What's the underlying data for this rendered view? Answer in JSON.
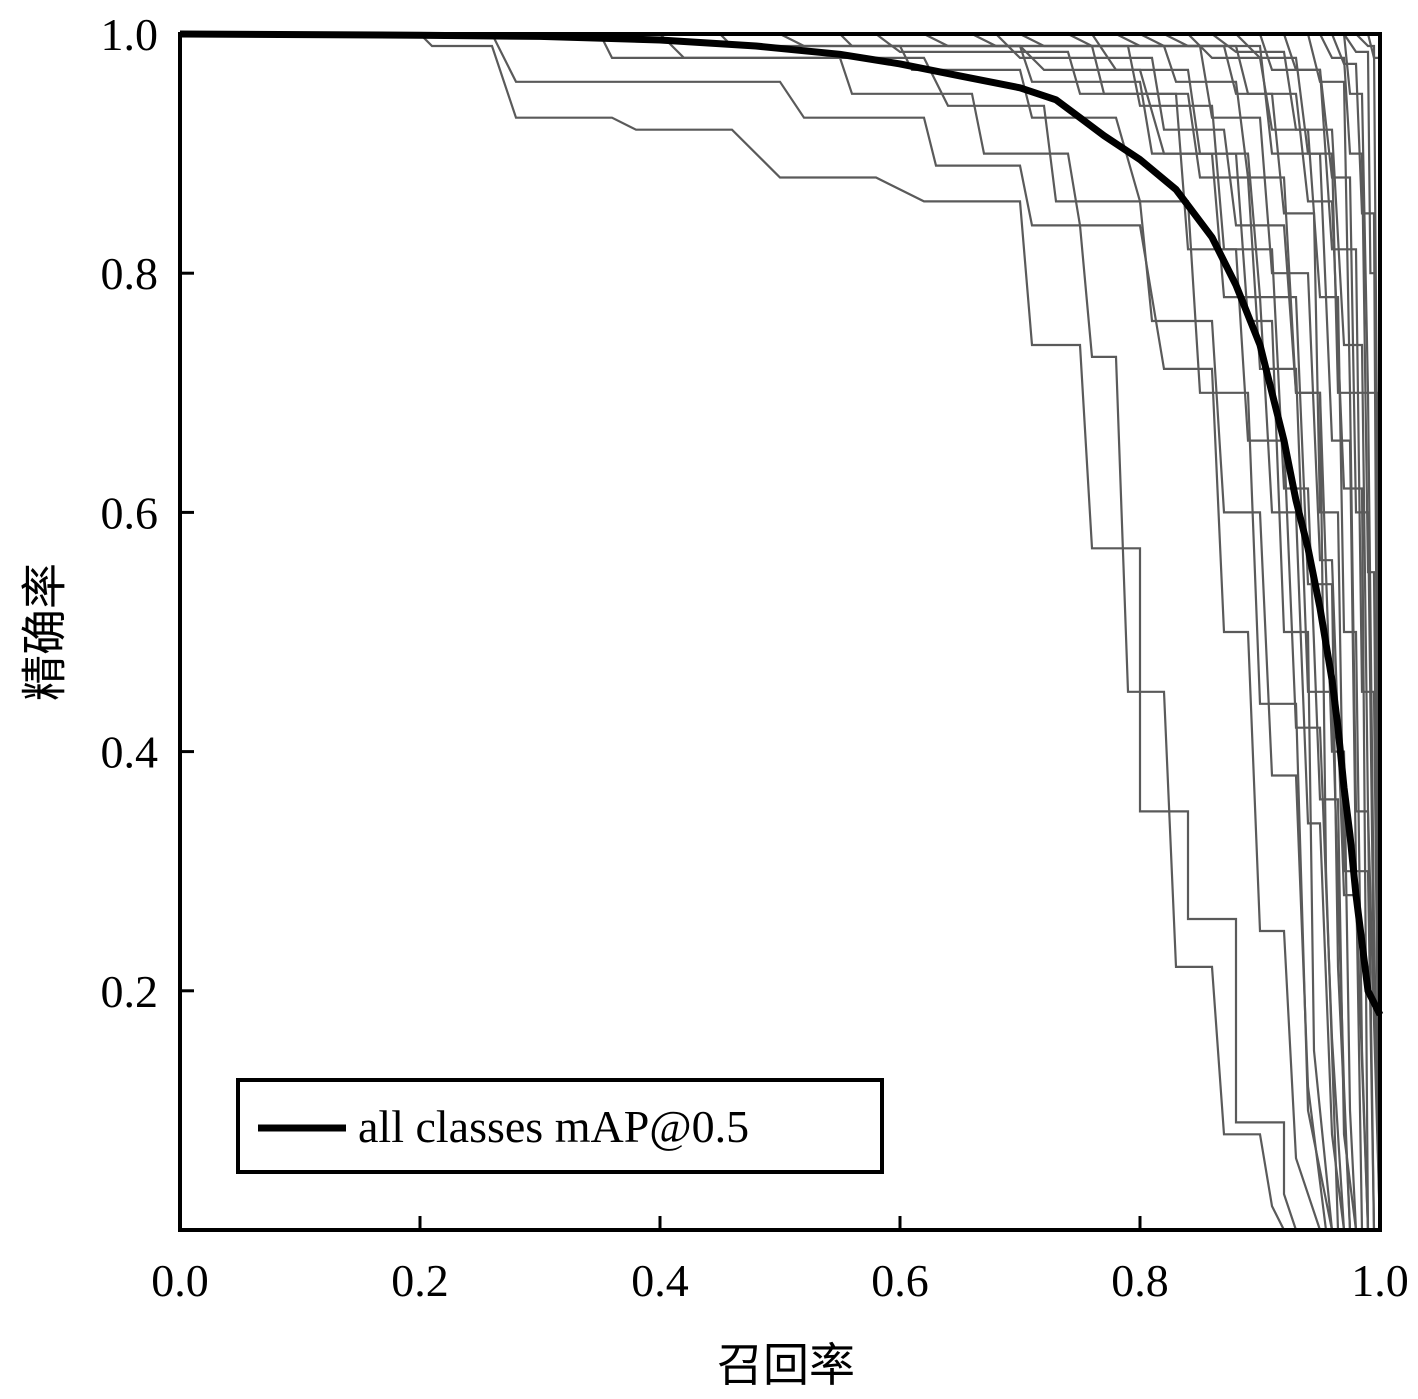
{
  "chart_data": {
    "type": "line",
    "title": "",
    "xlabel": "召回率",
    "ylabel": "精确率",
    "xlim": [
      0.0,
      1.0
    ],
    "ylim": [
      0.0,
      1.0
    ],
    "x_ticks": [
      0.0,
      0.2,
      0.4,
      0.6,
      0.8,
      1.0
    ],
    "y_ticks": [
      0.2,
      0.4,
      0.6,
      0.8,
      1.0
    ],
    "x_tick_labels": [
      "0.0",
      "0.2",
      "0.4",
      "0.6",
      "0.8",
      "1.0"
    ],
    "y_tick_labels": [
      "0.2",
      "0.4",
      "0.6",
      "0.8",
      "1.0"
    ],
    "grid": false,
    "legend": {
      "position": "lower-left",
      "entries": [
        "all classes mAP@0.5"
      ]
    },
    "colors": {
      "class_curves": "#5a5a5a",
      "all_classes": "#000000"
    },
    "series": [
      {
        "name": "all classes mAP@0.5",
        "emphasis": true,
        "x": [
          0.0,
          0.2,
          0.3,
          0.4,
          0.48,
          0.55,
          0.6,
          0.65,
          0.7,
          0.73,
          0.75,
          0.77,
          0.8,
          0.83,
          0.86,
          0.88,
          0.9,
          0.91,
          0.92,
          0.93,
          0.94,
          0.95,
          0.96,
          0.965,
          0.97,
          0.975,
          0.98,
          0.985,
          0.99,
          1.0
        ],
        "y": [
          1.0,
          0.999,
          0.998,
          0.995,
          0.99,
          0.983,
          0.975,
          0.965,
          0.955,
          0.945,
          0.93,
          0.915,
          0.895,
          0.87,
          0.83,
          0.79,
          0.74,
          0.7,
          0.66,
          0.61,
          0.57,
          0.52,
          0.46,
          0.42,
          0.37,
          0.33,
          0.28,
          0.24,
          0.2,
          0.18
        ]
      },
      {
        "x": [
          0.0,
          0.2,
          0.21,
          0.26,
          0.28,
          0.36,
          0.38,
          0.46,
          0.5,
          0.58,
          0.62,
          0.7,
          0.71,
          0.75,
          0.76,
          0.8,
          0.8,
          0.84,
          0.84,
          0.88,
          0.88,
          0.92,
          0.92,
          0.93
        ],
        "y": [
          1.0,
          1.0,
          0.99,
          0.99,
          0.93,
          0.93,
          0.92,
          0.92,
          0.88,
          0.88,
          0.86,
          0.86,
          0.74,
          0.74,
          0.57,
          0.57,
          0.35,
          0.35,
          0.26,
          0.26,
          0.09,
          0.09,
          0.03,
          0.0
        ]
      },
      {
        "x": [
          0.0,
          0.26,
          0.28,
          0.5,
          0.52,
          0.62,
          0.63,
          0.7,
          0.71,
          0.75,
          0.76,
          0.78,
          0.79,
          0.82,
          0.83,
          0.86,
          0.87,
          0.9,
          0.91,
          0.92
        ],
        "y": [
          1.0,
          1.0,
          0.96,
          0.96,
          0.93,
          0.93,
          0.89,
          0.89,
          0.84,
          0.84,
          0.73,
          0.73,
          0.45,
          0.45,
          0.22,
          0.22,
          0.08,
          0.08,
          0.02,
          0.0
        ]
      },
      {
        "x": [
          0.0,
          0.35,
          0.36,
          0.55,
          0.56,
          0.66,
          0.67,
          0.74,
          0.75,
          0.8,
          0.82,
          0.86,
          0.87,
          0.89,
          0.9,
          0.92,
          0.93,
          0.95
        ],
        "y": [
          1.0,
          1.0,
          0.98,
          0.98,
          0.95,
          0.95,
          0.9,
          0.9,
          0.84,
          0.84,
          0.72,
          0.72,
          0.5,
          0.5,
          0.25,
          0.25,
          0.06,
          0.0
        ]
      },
      {
        "x": [
          0.0,
          0.45,
          0.46,
          0.6,
          0.61,
          0.7,
          0.71,
          0.78,
          0.8,
          0.84,
          0.85,
          0.89,
          0.9,
          0.93,
          0.94,
          0.96
        ],
        "y": [
          1.0,
          1.0,
          0.99,
          0.99,
          0.97,
          0.97,
          0.93,
          0.93,
          0.86,
          0.86,
          0.7,
          0.7,
          0.44,
          0.44,
          0.1,
          0.0
        ]
      },
      {
        "x": [
          0.0,
          0.55,
          0.56,
          0.7,
          0.71,
          0.8,
          0.81,
          0.86,
          0.87,
          0.9,
          0.91,
          0.93,
          0.94,
          0.95,
          0.96,
          0.97
        ],
        "y": [
          1.0,
          1.0,
          0.99,
          0.99,
          0.96,
          0.96,
          0.9,
          0.9,
          0.78,
          0.78,
          0.6,
          0.6,
          0.34,
          0.34,
          0.08,
          0.0
        ]
      },
      {
        "x": [
          0.0,
          0.62,
          0.64,
          0.76,
          0.77,
          0.84,
          0.85,
          0.89,
          0.9,
          0.93,
          0.94,
          0.96,
          0.97,
          0.975
        ],
        "y": [
          1.0,
          1.0,
          0.99,
          0.99,
          0.95,
          0.95,
          0.88,
          0.88,
          0.72,
          0.72,
          0.45,
          0.45,
          0.12,
          0.0
        ]
      },
      {
        "x": [
          0.0,
          0.7,
          0.72,
          0.82,
          0.83,
          0.88,
          0.89,
          0.92,
          0.93,
          0.95,
          0.96,
          0.97,
          0.975,
          0.98
        ],
        "y": [
          1.0,
          1.0,
          0.99,
          0.99,
          0.96,
          0.96,
          0.88,
          0.88,
          0.7,
          0.7,
          0.4,
          0.4,
          0.1,
          0.0
        ]
      },
      {
        "x": [
          0.0,
          0.78,
          0.8,
          0.87,
          0.88,
          0.91,
          0.92,
          0.945,
          0.95,
          0.965,
          0.97,
          0.98,
          0.985
        ],
        "y": [
          1.0,
          1.0,
          0.99,
          0.99,
          0.95,
          0.95,
          0.85,
          0.85,
          0.6,
          0.6,
          0.3,
          0.3,
          0.0
        ]
      },
      {
        "x": [
          0.0,
          0.84,
          0.86,
          0.9,
          0.91,
          0.94,
          0.95,
          0.965,
          0.97,
          0.98,
          0.985,
          0.99
        ],
        "y": [
          1.0,
          1.0,
          0.98,
          0.98,
          0.92,
          0.92,
          0.78,
          0.78,
          0.5,
          0.5,
          0.15,
          0.0
        ]
      },
      {
        "x": [
          0.0,
          0.88,
          0.9,
          0.93,
          0.94,
          0.96,
          0.965,
          0.975,
          0.98,
          0.99,
          0.995
        ],
        "y": [
          1.0,
          1.0,
          0.98,
          0.98,
          0.9,
          0.9,
          0.7,
          0.7,
          0.35,
          0.35,
          0.0
        ]
      },
      {
        "x": [
          0.0,
          0.92,
          0.93,
          0.95,
          0.96,
          0.975,
          0.98,
          0.99,
          0.995,
          1.0
        ],
        "y": [
          1.0,
          1.0,
          0.97,
          0.97,
          0.88,
          0.88,
          0.6,
          0.6,
          0.2,
          0.0
        ]
      },
      {
        "x": [
          0.0,
          0.95,
          0.96,
          0.97,
          0.975,
          0.985,
          0.99,
          0.995,
          1.0
        ],
        "y": [
          1.0,
          1.0,
          0.98,
          0.98,
          0.9,
          0.9,
          0.55,
          0.55,
          0.0
        ]
      },
      {
        "x": [
          0.0,
          0.97,
          0.98,
          0.99,
          0.992,
          0.996,
          1.0
        ],
        "y": [
          1.0,
          1.0,
          0.985,
          0.985,
          0.8,
          0.8,
          0.0
        ]
      },
      {
        "x": [
          0.0,
          0.98,
          0.99,
          0.995,
          0.998,
          1.0
        ],
        "y": [
          1.0,
          1.0,
          0.99,
          0.99,
          0.6,
          0.0
        ]
      },
      {
        "x": [
          0.0,
          0.4,
          0.42,
          0.62,
          0.64,
          0.72,
          0.73,
          0.8,
          0.81,
          0.86,
          0.87,
          0.9,
          0.91,
          0.93,
          0.94,
          0.955
        ],
        "y": [
          1.0,
          1.0,
          0.98,
          0.98,
          0.94,
          0.94,
          0.86,
          0.86,
          0.76,
          0.76,
          0.6,
          0.6,
          0.38,
          0.38,
          0.12,
          0.0
        ]
      },
      {
        "x": [
          0.0,
          0.58,
          0.6,
          0.74,
          0.75,
          0.83,
          0.84,
          0.88,
          0.89,
          0.92,
          0.93,
          0.95,
          0.96,
          0.97
        ],
        "y": [
          1.0,
          1.0,
          0.985,
          0.985,
          0.95,
          0.95,
          0.82,
          0.82,
          0.66,
          0.66,
          0.42,
          0.42,
          0.16,
          0.0
        ]
      },
      {
        "x": [
          0.0,
          0.66,
          0.68,
          0.79,
          0.8,
          0.86,
          0.87,
          0.91,
          0.92,
          0.94,
          0.95,
          0.965,
          0.97,
          0.98
        ],
        "y": [
          1.0,
          1.0,
          0.99,
          0.99,
          0.94,
          0.94,
          0.82,
          0.82,
          0.62,
          0.62,
          0.36,
          0.36,
          0.08,
          0.0
        ]
      },
      {
        "x": [
          0.0,
          0.74,
          0.76,
          0.85,
          0.86,
          0.9,
          0.91,
          0.94,
          0.95,
          0.96,
          0.97,
          0.98,
          0.99
        ],
        "y": [
          1.0,
          1.0,
          0.99,
          0.99,
          0.93,
          0.93,
          0.8,
          0.8,
          0.56,
          0.56,
          0.28,
          0.28,
          0.0
        ]
      },
      {
        "x": [
          0.0,
          0.82,
          0.84,
          0.9,
          0.91,
          0.95,
          0.96,
          0.975,
          0.98,
          0.99,
          0.995
        ],
        "y": [
          1.0,
          1.0,
          0.99,
          0.99,
          0.9,
          0.9,
          0.66,
          0.66,
          0.3,
          0.3,
          0.0
        ]
      },
      {
        "x": [
          0.0,
          0.9,
          0.91,
          0.95,
          0.96,
          0.98,
          0.985,
          0.995,
          1.0
        ],
        "y": [
          1.0,
          1.0,
          0.97,
          0.97,
          0.82,
          0.82,
          0.45,
          0.45,
          0.0
        ]
      },
      {
        "x": [
          0.0,
          0.94,
          0.95,
          0.97,
          0.975,
          0.99,
          0.995,
          1.0
        ],
        "y": [
          1.0,
          1.0,
          0.96,
          0.96,
          0.7,
          0.7,
          0.25,
          0.0
        ]
      },
      {
        "x": [
          0.0,
          0.96,
          0.97,
          0.98,
          0.985,
          0.995,
          1.0
        ],
        "y": [
          1.0,
          1.0,
          0.975,
          0.975,
          0.85,
          0.85,
          0.0
        ]
      },
      {
        "x": [
          0.0,
          0.86,
          0.88,
          0.92,
          0.93,
          0.96,
          0.97,
          0.985,
          0.99,
          1.0
        ],
        "y": [
          1.0,
          1.0,
          0.985,
          0.985,
          0.92,
          0.92,
          0.74,
          0.74,
          0.35,
          0.0
        ]
      },
      {
        "x": [
          0.0,
          0.8,
          0.82,
          0.88,
          0.89,
          0.93,
          0.94,
          0.96,
          0.97,
          0.985,
          0.99
        ],
        "y": [
          1.0,
          1.0,
          0.99,
          0.99,
          0.95,
          0.95,
          0.86,
          0.86,
          0.62,
          0.62,
          0.0
        ]
      },
      {
        "x": [
          0.0,
          0.76,
          0.78,
          0.84,
          0.85,
          0.89,
          0.9,
          0.93,
          0.94,
          0.96,
          0.965,
          0.975
        ],
        "y": [
          1.0,
          1.0,
          0.97,
          0.97,
          0.9,
          0.9,
          0.78,
          0.78,
          0.54,
          0.54,
          0.22,
          0.0
        ]
      },
      {
        "x": [
          0.0,
          0.68,
          0.7,
          0.81,
          0.82,
          0.87,
          0.88,
          0.92,
          0.93,
          0.95,
          0.955,
          0.965
        ],
        "y": [
          1.0,
          1.0,
          0.98,
          0.98,
          0.92,
          0.92,
          0.84,
          0.84,
          0.7,
          0.7,
          0.3,
          0.0
        ]
      },
      {
        "x": [
          0.0,
          0.5,
          0.52,
          0.7,
          0.72,
          0.8,
          0.82,
          0.88,
          0.89,
          0.91,
          0.92,
          0.94,
          0.945,
          0.96
        ],
        "y": [
          1.0,
          1.0,
          0.99,
          0.99,
          0.97,
          0.97,
          0.9,
          0.9,
          0.76,
          0.76,
          0.5,
          0.5,
          0.15,
          0.0
        ]
      },
      {
        "x": [
          0.0,
          0.97,
          0.975,
          0.985,
          0.99,
          0.998,
          1.0
        ],
        "y": [
          1.0,
          1.0,
          0.95,
          0.95,
          0.7,
          0.7,
          0.0
        ]
      },
      {
        "x": [
          0.0,
          0.99,
          0.995,
          1.0,
          1.0
        ],
        "y": [
          1.0,
          1.0,
          0.98,
          0.98,
          0.0
        ]
      }
    ]
  }
}
